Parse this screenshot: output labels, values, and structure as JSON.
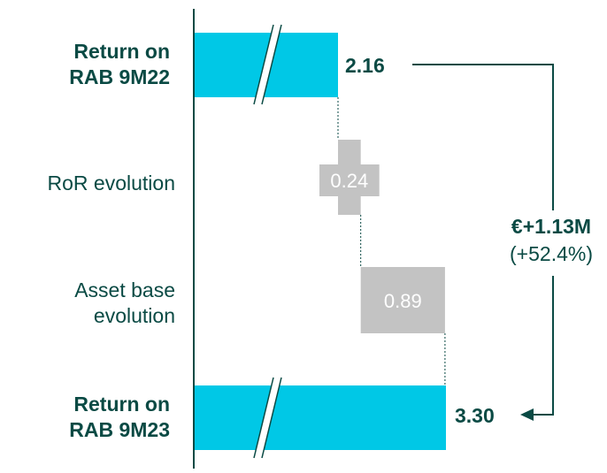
{
  "chart_data": {
    "type": "waterfall",
    "categories": [
      {
        "line1": "Return on",
        "line2": "RAB 9M22",
        "bold": true
      },
      {
        "line1": "RoR evolution",
        "line2": "",
        "bold": false
      },
      {
        "line1": "Asset base",
        "line2": "evolution",
        "bold": false
      },
      {
        "line1": "Return on",
        "line2": "RAB 9M23",
        "bold": true
      }
    ],
    "values": [
      2.16,
      0.24,
      0.89,
      3.3
    ],
    "value_labels": [
      "2.16",
      "0.24",
      "0.89",
      "3.30"
    ],
    "kinds": [
      "total",
      "delta",
      "delta",
      "total"
    ],
    "axis_break": true,
    "annotation": {
      "main": "€+1.13M",
      "sub": "(+52.4%)"
    },
    "colors": {
      "total": "#00c8e6",
      "delta": "#c3c3c3",
      "text": "#0a4a44",
      "delta_text": "#ffffff"
    }
  }
}
